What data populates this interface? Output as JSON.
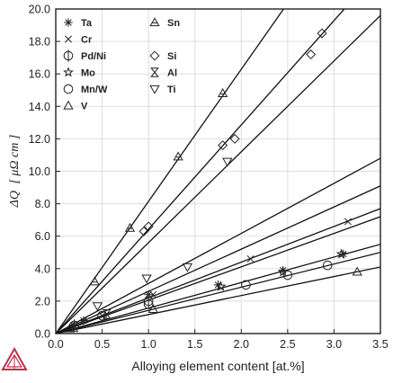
{
  "chart_data": {
    "type": "scatter",
    "xlabel": "Alloying element content [at.%]",
    "ylabel_symbol": "ΔQ",
    "ylabel_units": "[ μΩ cm ]",
    "xlim": [
      0.0,
      3.5
    ],
    "ylim": [
      0.0,
      20.0
    ],
    "x_ticks": [
      "0.0",
      "0.5",
      "1.0",
      "1.5",
      "2.0",
      "2.5",
      "3.0",
      "3.5"
    ],
    "y_ticks": [
      "0.0",
      "2.0",
      "4.0",
      "6.0",
      "8.0",
      "10.0",
      "12.0",
      "14.0",
      "16.0",
      "18.0",
      "20.0"
    ],
    "grid": true,
    "legend_position": "top-left (inside)",
    "series": [
      {
        "name": "Ta",
        "marker": "asterisk",
        "points": [
          [
            0.3,
            0.8
          ],
          [
            1.0,
            2.4
          ],
          [
            1.75,
            3.0
          ],
          [
            2.45,
            3.9
          ],
          [
            3.1,
            4.9
          ]
        ]
      },
      {
        "name": "Cr",
        "marker": "cross",
        "points": [
          [
            0.5,
            1.1
          ],
          [
            1.05,
            2.4
          ],
          [
            2.1,
            4.6
          ],
          [
            3.15,
            6.9
          ]
        ]
      },
      {
        "name": "Pd/Ni",
        "marker": "circle-bar",
        "points": [
          [
            0.2,
            0.5
          ],
          [
            1.0,
            2.0
          ]
        ]
      },
      {
        "name": "Mo",
        "marker": "star",
        "points": [
          [
            1.78,
            2.9
          ],
          [
            2.45,
            3.8
          ],
          [
            3.08,
            4.9
          ]
        ]
      },
      {
        "name": "Mn/W",
        "marker": "circle",
        "points": [
          [
            0.5,
            1.1
          ],
          [
            1.0,
            1.8
          ],
          [
            2.05,
            3.0
          ],
          [
            2.5,
            3.6
          ],
          [
            2.93,
            4.2
          ]
        ]
      },
      {
        "name": "V",
        "marker": "triangle-up",
        "points": [
          [
            0.15,
            0.3
          ],
          [
            1.05,
            1.5
          ],
          [
            3.25,
            3.8
          ]
        ]
      },
      {
        "name": "Sn",
        "marker": "triangle-up-bar",
        "points": [
          [
            0.42,
            3.2
          ],
          [
            0.8,
            6.5
          ],
          [
            1.32,
            10.9
          ],
          [
            1.8,
            14.8
          ]
        ]
      },
      {
        "name": "Si",
        "marker": "diamond",
        "points": [
          [
            0.95,
            6.3
          ],
          [
            1.0,
            6.6
          ],
          [
            1.8,
            11.6
          ],
          [
            1.93,
            12.0
          ],
          [
            2.75,
            17.2
          ],
          [
            2.87,
            18.5
          ]
        ]
      },
      {
        "name": "Al",
        "marker": "hourglass",
        "points": [
          [
            0.2,
            0.4
          ],
          [
            0.55,
            1.2
          ]
        ]
      },
      {
        "name": "Ti",
        "marker": "triangle-down",
        "points": [
          [
            0.45,
            1.7
          ],
          [
            0.98,
            3.4
          ],
          [
            1.42,
            4.1
          ],
          [
            1.85,
            10.6
          ]
        ]
      }
    ],
    "fit_lines": [
      {
        "series": "Sn",
        "points": [
          [
            0,
            0
          ],
          [
            3.5,
            28.5
          ]
        ]
      },
      {
        "series": "Si",
        "points": [
          [
            0,
            0
          ],
          [
            3.5,
            22.5
          ]
        ]
      },
      {
        "series": "Ti",
        "points": [
          [
            0,
            0
          ],
          [
            3.5,
            19.6
          ]
        ]
      },
      {
        "series": "Cr",
        "points": [
          [
            0,
            0
          ],
          [
            3.5,
            10.8
          ]
        ]
      },
      {
        "series": "Ta",
        "points": [
          [
            0,
            0
          ],
          [
            3.5,
            9.1
          ]
        ]
      },
      {
        "series": "Mo",
        "points": [
          [
            0,
            0
          ],
          [
            3.5,
            7.7
          ]
        ]
      },
      {
        "series": "Mn/W",
        "points": [
          [
            0,
            0
          ],
          [
            3.5,
            5.5
          ]
        ]
      },
      {
        "series": "Al",
        "points": [
          [
            0,
            0
          ],
          [
            3.5,
            7.2
          ]
        ]
      },
      {
        "series": "Pd/Ni",
        "points": [
          [
            0,
            0
          ],
          [
            3.5,
            5.0
          ]
        ]
      },
      {
        "series": "V",
        "points": [
          [
            0,
            0
          ],
          [
            3.5,
            4.1
          ]
        ]
      }
    ],
    "legend": [
      {
        "label": "Ta",
        "marker": "asterisk",
        "column": 0,
        "row": 0
      },
      {
        "label": "Cr",
        "marker": "cross",
        "column": 0,
        "row": 1
      },
      {
        "label": "Pd/Ni",
        "marker": "circle-bar",
        "column": 0,
        "row": 2
      },
      {
        "label": "Mo",
        "marker": "star",
        "column": 0,
        "row": 3
      },
      {
        "label": "Mn/W",
        "marker": "circle",
        "column": 0,
        "row": 4
      },
      {
        "label": "V",
        "marker": "triangle-up",
        "column": 0,
        "row": 5
      },
      {
        "label": "Sn",
        "marker": "triangle-up-bar",
        "column": 1,
        "row": 0
      },
      {
        "label": "Si",
        "marker": "diamond",
        "column": 1,
        "row": 2
      },
      {
        "label": "Al",
        "marker": "hourglass",
        "column": 1,
        "row": 3
      },
      {
        "label": "Ti",
        "marker": "triangle-down",
        "column": 1,
        "row": 4
      }
    ],
    "colors": {
      "axis": "#222222",
      "grid": "#dddddd",
      "line": "#111111",
      "logo": "#c0304c"
    }
  },
  "logo": {
    "name": "thermo-calc-logo"
  }
}
